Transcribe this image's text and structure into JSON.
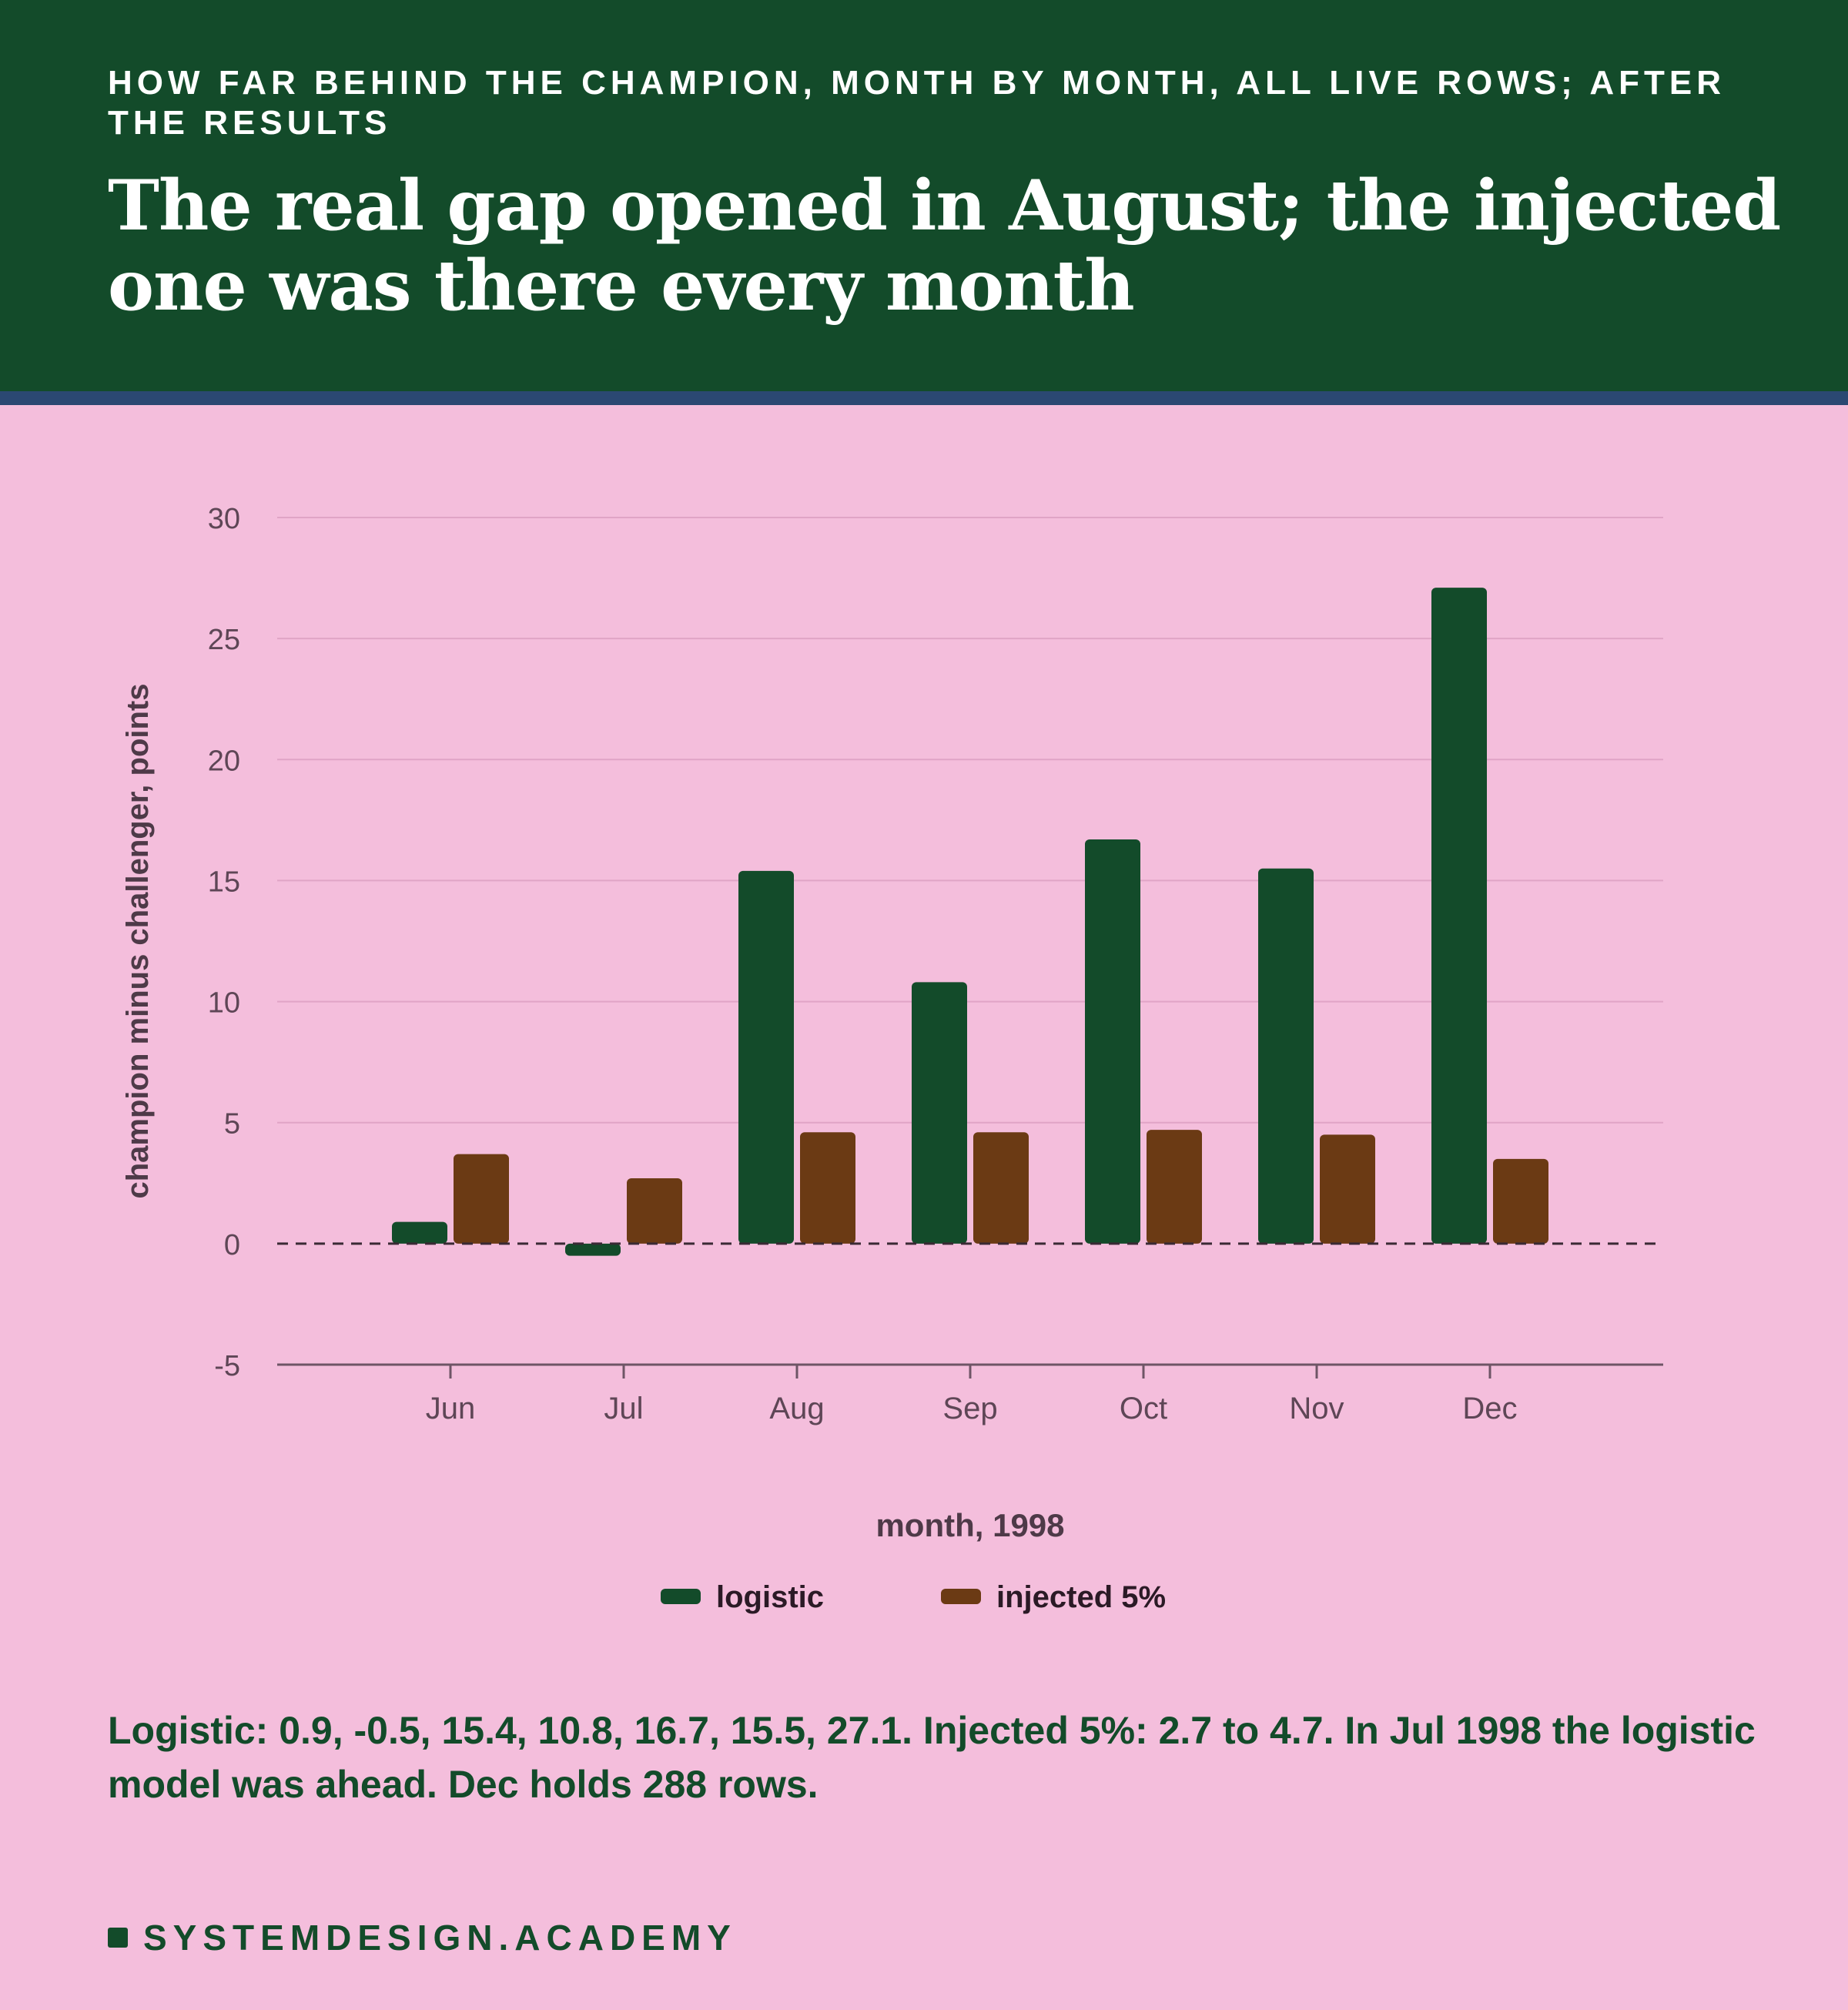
{
  "header": {
    "kicker": "How far behind the champion, month by month, all live rows; after the results",
    "headline": "The real gap opened in August; the injected one was there every month"
  },
  "chart_data": {
    "type": "bar",
    "categories": [
      "Jun",
      "Jul",
      "Aug",
      "Sep",
      "Oct",
      "Nov",
      "Dec"
    ],
    "series": [
      {
        "name": "logistic",
        "values": [
          0.9,
          -0.5,
          15.4,
          10.8,
          16.7,
          15.5,
          27.1
        ],
        "color": "#134b2a"
      },
      {
        "name": "injected 5%",
        "values": [
          3.7,
          2.7,
          4.6,
          4.6,
          4.7,
          4.5,
          3.5
        ],
        "color": "#6b3a14"
      }
    ],
    "xlabel": "month, 1998",
    "ylabel": "champion minus challenger, points",
    "ylim": [
      -5,
      30
    ],
    "yticks": [
      -5,
      0,
      5,
      10,
      15,
      20,
      25,
      30
    ],
    "zero_line": "dashed",
    "grid": true,
    "legend": "bottom-center",
    "colors": {
      "grid": "#e0a4c6",
      "axis": "#6e5566",
      "tick_text": "#5e4656",
      "label_text": "#4e3a48"
    }
  },
  "summary": "Logistic: 0.9, -0.5, 15.4, 10.8, 16.7, 15.5, 27.1. Injected 5%: 2.7 to 4.7. In Jul 1998 the logistic model was ahead. Dec holds 288 rows.",
  "brand": "SYSTEMDESIGN.ACADEMY",
  "colors": {
    "header_bg": "#134b2a",
    "header_rule": "#2b4872",
    "page_bg": "#f4bedc",
    "text_dark": "#134b2a"
  }
}
